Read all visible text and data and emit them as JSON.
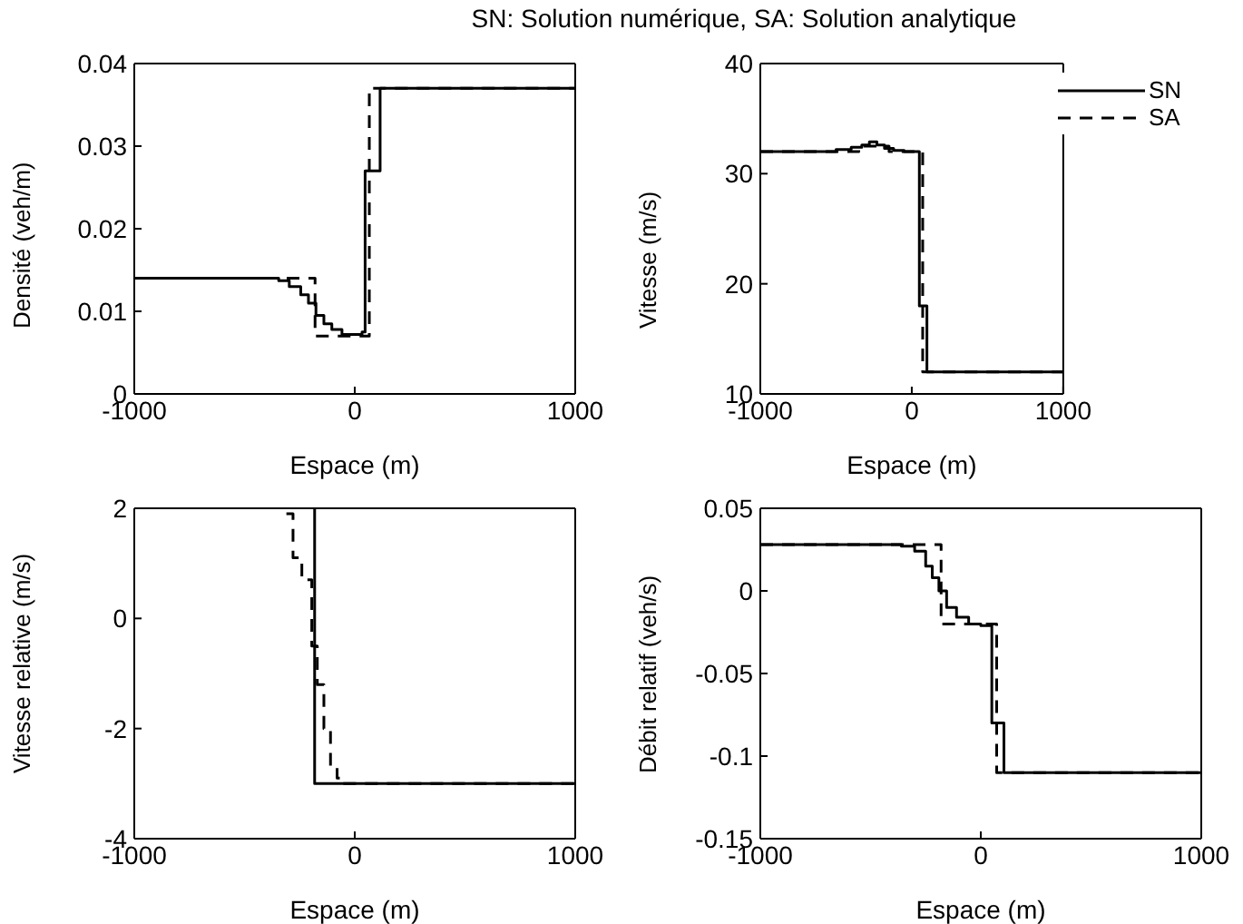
{
  "chart_data": [
    {
      "type": "step",
      "title": "SN: Solution numérique, SA: Solution analytique",
      "xlabel": "Espace (m)",
      "ylabel": "Densité (veh/m)",
      "xlim": [
        -1000,
        1000
      ],
      "xticks": [
        -1000,
        0,
        1000
      ],
      "ylim": [
        0,
        0.04
      ],
      "yticks": [
        0,
        0.01,
        0.02,
        0.03,
        0.04
      ],
      "grid": false,
      "legend": false,
      "series": [
        {
          "color": "#000000",
          "line_style": "solid",
          "x": [
            -1000,
            -400,
            -345,
            -297,
            -245,
            -210,
            -176,
            -140,
            -104,
            -58,
            33,
            47,
            115,
            1000
          ],
          "values": [
            0.014,
            0.014,
            0.0137,
            0.013,
            0.012,
            0.011,
            0.0095,
            0.0085,
            0.0078,
            0.0072,
            0.0075,
            0.027,
            0.037,
            0.037
          ]
        },
        {
          "color": "#000000",
          "line_style": "dashed",
          "x": [
            -1000,
            -180,
            66,
            1000
          ],
          "values": [
            0.014,
            0.007,
            0.037,
            0.037
          ]
        }
      ]
    },
    {
      "type": "step",
      "xlabel": "Espace (m)",
      "ylabel": "Vitesse (m/s)",
      "xlim": [
        -1000,
        1000
      ],
      "xticks": [
        -1000,
        0,
        1000
      ],
      "ylim": [
        10,
        40
      ],
      "yticks": [
        10,
        20,
        30,
        40
      ],
      "grid": false,
      "legend": "top right",
      "series": [
        {
          "name": "SN",
          "color": "#000000",
          "line_style": "solid",
          "x": [
            -1000,
            -500,
            -400,
            -330,
            -280,
            -230,
            -180,
            -120,
            -50,
            50,
            100,
            1000
          ],
          "values": [
            32,
            32.2,
            32.4,
            32.6,
            32.9,
            32.6,
            32.3,
            32.1,
            32,
            18,
            12,
            12
          ]
        },
        {
          "name": "SA",
          "color": "#000000",
          "line_style": "dashed",
          "x": [
            -1000,
            -350,
            -150,
            72,
            1000
          ],
          "values": [
            32,
            32.5,
            32,
            12,
            12
          ]
        }
      ]
    },
    {
      "type": "step",
      "xlabel": "Espace (m)",
      "ylabel": "Vitesse relative (m/s)",
      "xlim": [
        -1000,
        1000
      ],
      "xticks": [
        -1000,
        0,
        1000
      ],
      "ylim": [
        -4,
        2
      ],
      "yticks": [
        -4,
        -2,
        0,
        2
      ],
      "grid": false,
      "legend": false,
      "series": [
        {
          "color": "#000000",
          "line_style": "solid",
          "x": [
            -182,
            -182,
            1000
          ],
          "values": [
            2,
            -3,
            -3
          ]
        },
        {
          "color": "#000000",
          "line_style": "dashed",
          "x": [
            -310,
            -280,
            -240,
            -195,
            -170,
            -140,
            -110,
            -80,
            -60,
            1000
          ],
          "values": [
            1.9,
            1.1,
            0.7,
            -0.5,
            -1.2,
            -2,
            -2.7,
            -2.9,
            -3,
            -3
          ]
        }
      ]
    },
    {
      "type": "step",
      "xlabel": "Espace (m)",
      "ylabel": "Débit relatif (veh/s)",
      "xlim": [
        -1000,
        1000
      ],
      "xticks": [
        -1000,
        0,
        1000
      ],
      "ylim": [
        -0.15,
        0.05
      ],
      "yticks": [
        -0.15,
        -0.1,
        -0.05,
        0,
        0.05
      ],
      "grid": false,
      "legend": false,
      "series": [
        {
          "color": "#000000",
          "line_style": "solid",
          "x": [
            -1000,
            -400,
            -360,
            -300,
            -250,
            -220,
            -190,
            -155,
            -110,
            -55,
            0,
            50,
            105,
            1000
          ],
          "values": [
            0.028,
            0.028,
            0.027,
            0.024,
            0.015,
            0.008,
            0,
            -0.01,
            -0.016,
            -0.02,
            -0.021,
            -0.08,
            -0.11,
            -0.11
          ]
        },
        {
          "color": "#000000",
          "line_style": "dashed",
          "x": [
            -1000,
            -180,
            72,
            1000
          ],
          "values": [
            0.028,
            -0.02,
            -0.11,
            -0.11
          ]
        }
      ]
    }
  ]
}
